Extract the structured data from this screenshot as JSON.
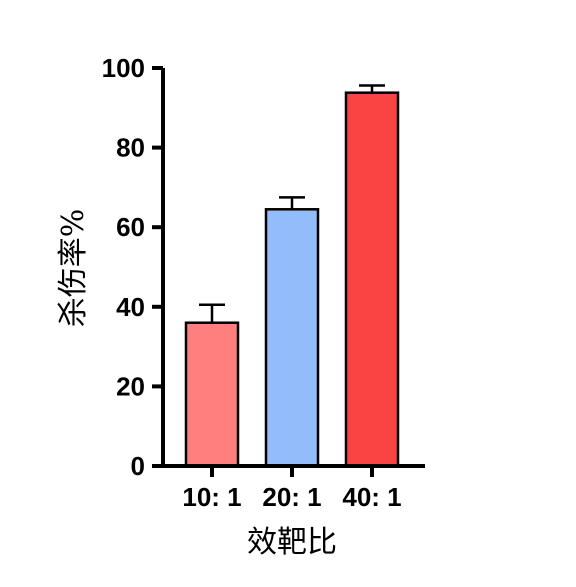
{
  "chart_data": {
    "type": "bar",
    "title": "",
    "xlabel": "效靶比",
    "ylabel": "杀伤率%",
    "categories": [
      "10: 1",
      "20: 1",
      "40: 1"
    ],
    "values": [
      36,
      64.5,
      93.8
    ],
    "errors": [
      4.5,
      3,
      1.8
    ],
    "bar_colors": [
      "#ff7f7f",
      "#92bdfa",
      "#fa4444"
    ],
    "ylim": [
      0,
      100
    ],
    "yticks": [
      "0",
      "20",
      "40",
      "60",
      "80",
      "100"
    ],
    "ytick_values": [
      0,
      20,
      40,
      60,
      80,
      100
    ],
    "grid": false,
    "legend": "none"
  }
}
